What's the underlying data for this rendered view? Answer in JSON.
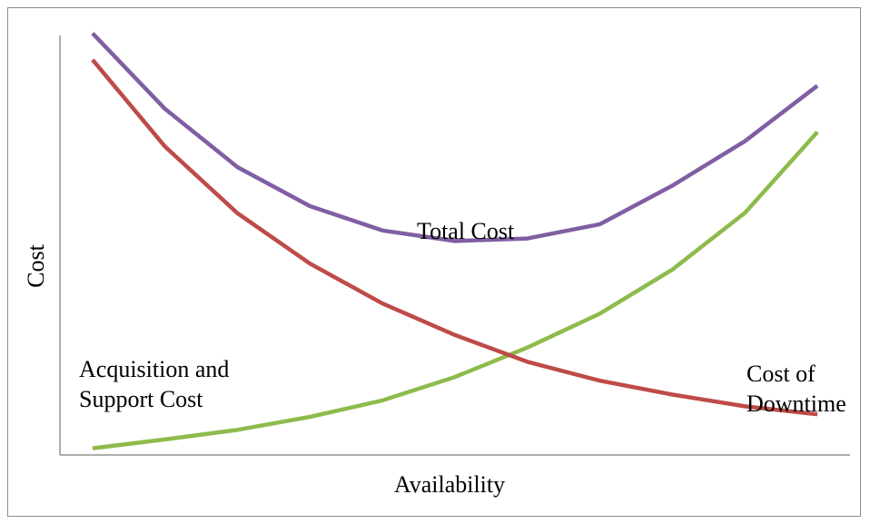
{
  "chart_data": {
    "type": "line",
    "title": "",
    "xlabel": "Availability",
    "ylabel": "Cost",
    "x": [
      1,
      2,
      3,
      4,
      5,
      6,
      7,
      8,
      9,
      10,
      11
    ],
    "xlim": [
      0.55,
      11.45
    ],
    "ylim": [
      0,
      100
    ],
    "grid": false,
    "legend": "none",
    "series": [
      {
        "name": "Total Cost",
        "color": "#7F5FA3",
        "values": [
          100.5,
          82.5,
          68.6,
          59.3,
          53.5,
          51.0,
          51.6,
          55.0,
          64.2,
          74.8,
          88.0
        ]
      },
      {
        "name": "Acquisition and Support Cost",
        "color": "#8DBB4C",
        "values": [
          1.6,
          3.7,
          6.0,
          9.1,
          13.0,
          18.6,
          25.6,
          33.7,
          44.2,
          57.7,
          77.0
        ]
      },
      {
        "name": "Cost of Downtime",
        "color": "#BE4B48",
        "values": [
          94.2,
          73.5,
          57.6,
          45.6,
          36.1,
          28.6,
          22.2,
          17.7,
          14.4,
          11.6,
          9.7
        ]
      }
    ],
    "annotations": [
      {
        "series": 0,
        "lines": [
          "Total Cost"
        ]
      },
      {
        "series": 1,
        "lines": [
          "Acquisition and",
          "Support Cost"
        ]
      },
      {
        "series": 2,
        "lines": [
          "Cost of",
          "Downtime"
        ]
      }
    ]
  }
}
